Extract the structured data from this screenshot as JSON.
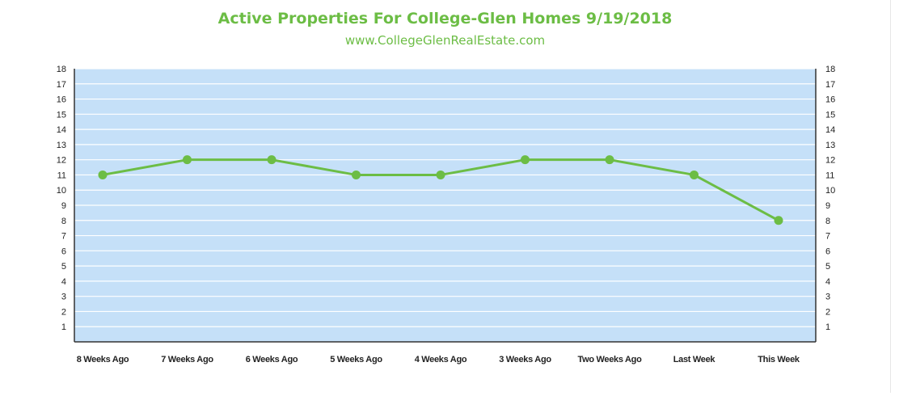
{
  "chart_data": {
    "type": "line",
    "title": "Active Properties For College-Glen Homes 9/19/2018",
    "subtitle": "www.CollegeGlenRealEstate.com",
    "categories": [
      "8 Weeks Ago",
      "7 Weeks Ago",
      "6 Weeks Ago",
      "5 Weeks Ago",
      "4 Weeks Ago",
      "3 Weeks Ago",
      "Two Weeks Ago",
      "Last Week",
      "This Week"
    ],
    "series": [
      {
        "values": [
          11,
          12,
          12,
          11,
          11,
          12,
          12,
          11,
          8
        ]
      }
    ],
    "ylim": [
      0,
      18
    ],
    "yticks": [
      1,
      2,
      3,
      4,
      5,
      6,
      7,
      8,
      9,
      10,
      11,
      12,
      13,
      14,
      15,
      16,
      17,
      18
    ],
    "grid": true,
    "legend": "none",
    "colors": {
      "line": "#6cbd45",
      "plot_background": "#c5e0f8",
      "gridline": "#ffffff",
      "title": "#6cbd45"
    }
  }
}
